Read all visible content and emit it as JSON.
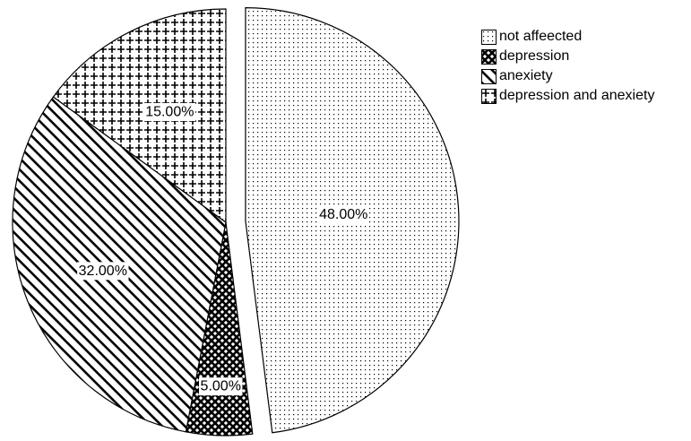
{
  "chart_data": {
    "type": "pie",
    "title": "",
    "categories": [
      "not affeected",
      "depression",
      "anexiety",
      "depression and anexiety"
    ],
    "values": [
      48,
      5,
      32,
      15
    ],
    "labels": [
      "48.00%",
      "5.00%",
      "32.00%",
      "15.00%"
    ],
    "exploded": "not affeected",
    "start": "12 o'clock, clockwise",
    "legend": "top-right",
    "fills": [
      "dotted",
      "cross-hatch",
      "diagonal-stripes",
      "plus-pattern"
    ],
    "colors": {
      "ink": "#000000",
      "background": "#ffffff"
    }
  },
  "legend": {
    "items": [
      "not affeected",
      "depression",
      "anexiety",
      "depression and anexiety"
    ]
  }
}
